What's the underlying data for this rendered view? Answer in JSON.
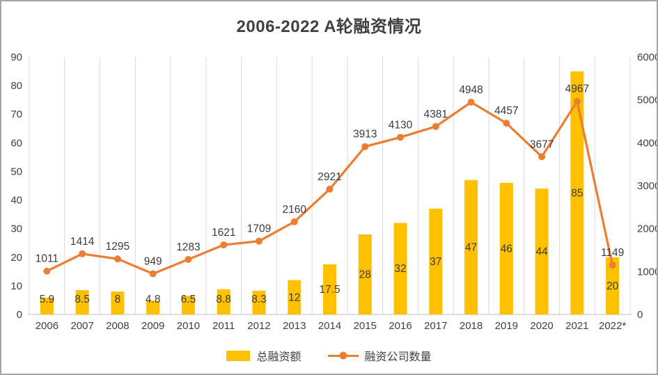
{
  "chart_data": {
    "type": "combo",
    "title": "2006-2022 A轮融资情况",
    "categories": [
      "2006",
      "2007",
      "2008",
      "2009",
      "2010",
      "2011",
      "2012",
      "2013",
      "2014",
      "2015",
      "2016",
      "2017",
      "2018",
      "2019",
      "2020",
      "2021",
      "2022*"
    ],
    "series": [
      {
        "name": "总融资额",
        "type": "bar",
        "axis": "left",
        "color": "#FFC000",
        "values": [
          5.9,
          8.5,
          8,
          4.8,
          6.5,
          8.8,
          8.3,
          12,
          17.5,
          28,
          32,
          37,
          47,
          46,
          44,
          85,
          20
        ]
      },
      {
        "name": "融资公司数量",
        "type": "line",
        "axis": "right",
        "color": "#ED7D31",
        "values": [
          1011,
          1414,
          1295,
          949,
          1283,
          1621,
          1709,
          2160,
          2921,
          3913,
          4130,
          4381,
          4948,
          4457,
          3677,
          4967,
          1149
        ]
      }
    ],
    "left_axis": {
      "min": 0,
      "max": 90,
      "step": 10
    },
    "right_axis": {
      "min": 0,
      "max": 6000,
      "step": 1000
    },
    "grid": "vertical",
    "legend_position": "bottom",
    "data_labels": true
  },
  "styles": {
    "text_color": "#404040",
    "data_label_color": "#3b3b3b",
    "grid_color": "#d9d9d9",
    "axis_line_color": "#bfbfbf"
  }
}
